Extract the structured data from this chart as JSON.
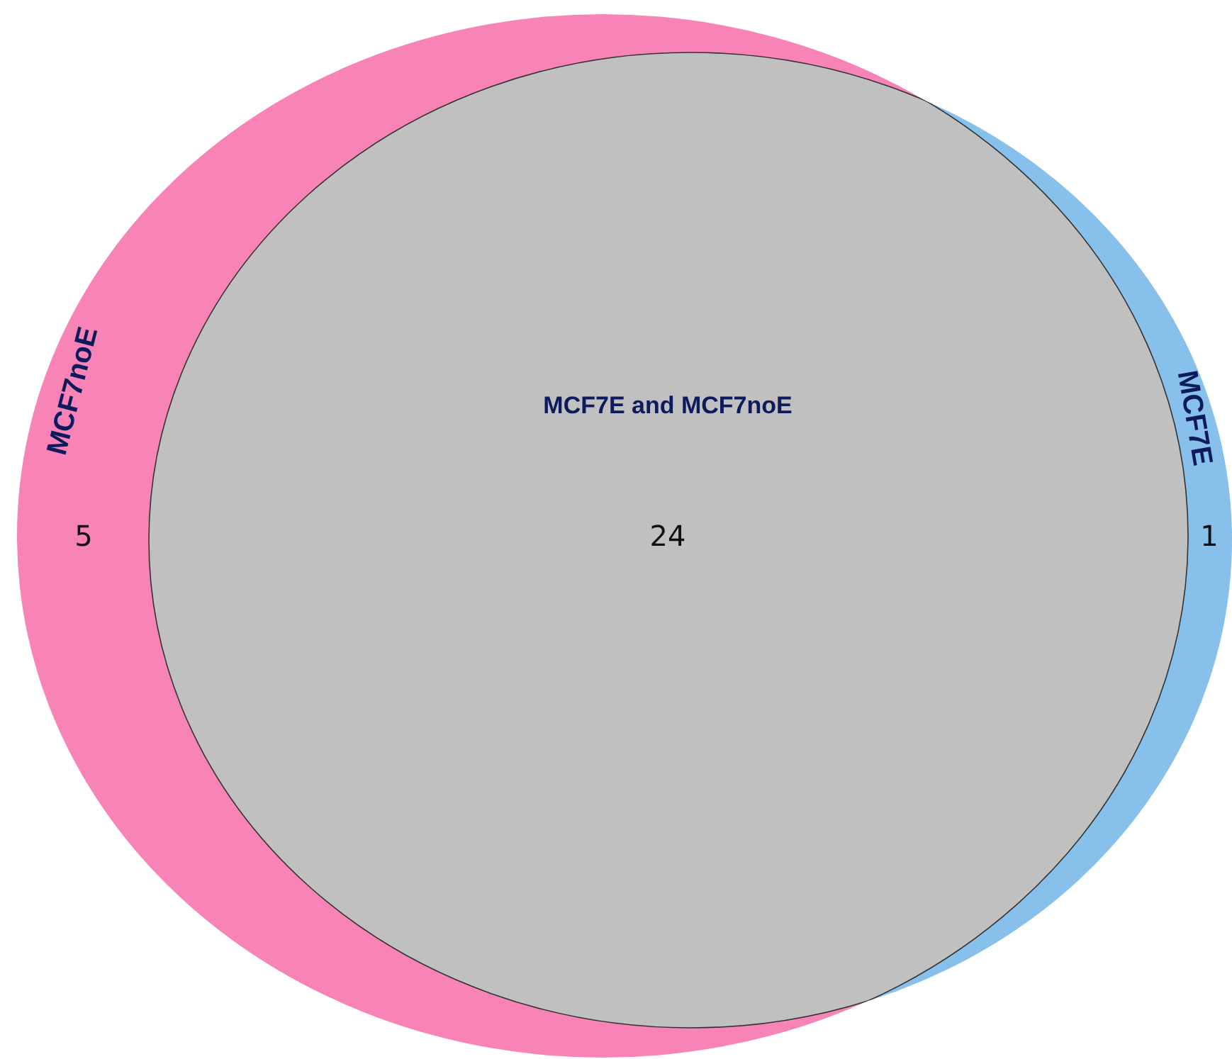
{
  "chart_data": {
    "type": "other",
    "categories": [
      "MCF7noE",
      "MCF7E",
      "MCF7E and MCF7noE"
    ],
    "values": [
      5,
      1,
      24
    ],
    "colors": [
      "#f883b6",
      "#88c0ec",
      "#c0c0c0"
    ],
    "data_labels": true
  }
}
